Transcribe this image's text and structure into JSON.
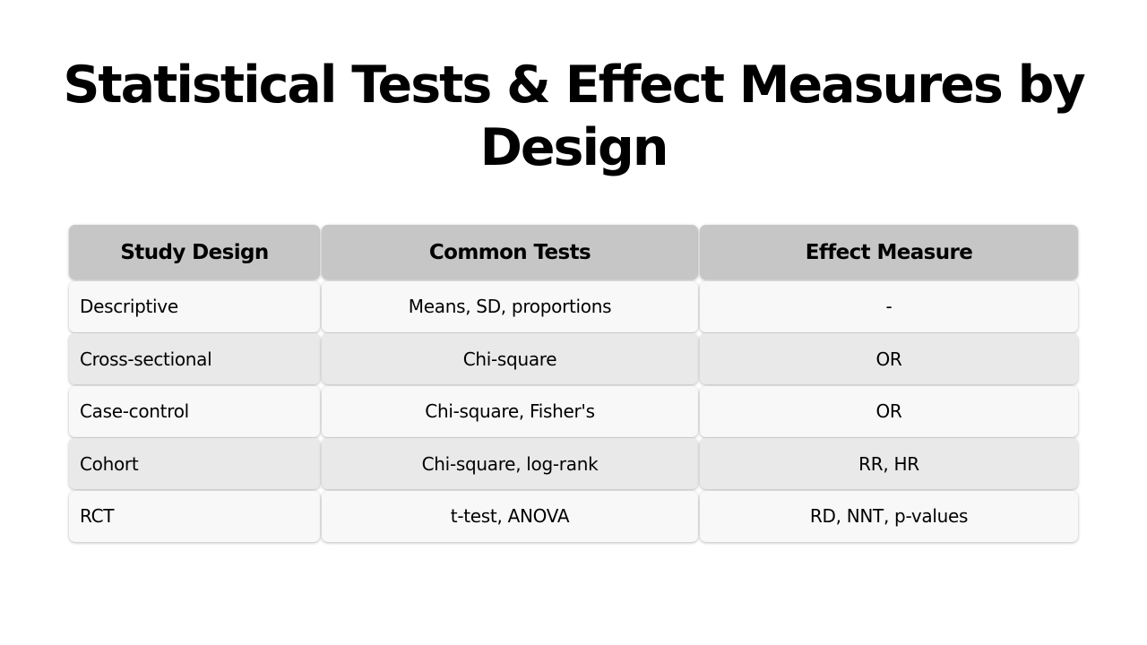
{
  "title": "Statistical Tests & Effect Measures by Design",
  "table": {
    "headers": [
      "Study Design",
      "Common Tests",
      "Effect Measure"
    ],
    "rows": [
      [
        "Descriptive",
        "Means, SD, proportions",
        "-"
      ],
      [
        "Cross-sectional",
        "Chi-square",
        "OR"
      ],
      [
        "Case-control",
        "Chi-square, Fisher's",
        "OR"
      ],
      [
        "Cohort",
        "Chi-square, log-rank",
        "RR, HR"
      ],
      [
        "RCT",
        "t-test, ANOVA",
        "RD, NNT, p-values"
      ]
    ]
  }
}
